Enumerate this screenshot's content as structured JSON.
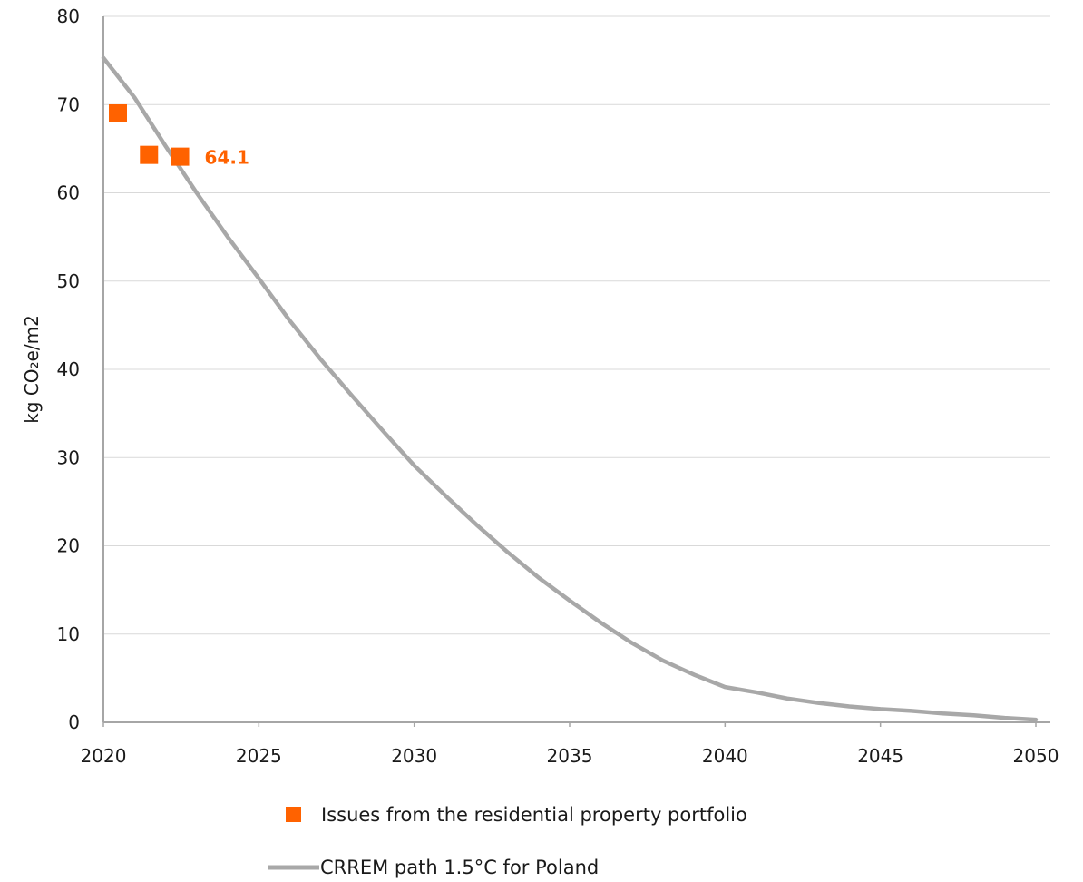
{
  "colors": {
    "issues": "#ff6200",
    "crrem": "#a8a8a8",
    "grid": "#d9d9d9",
    "axis": "#a6a6a6"
  },
  "chart_data": {
    "type": "line",
    "xlim": [
      2020,
      2050
    ],
    "ylim": [
      0,
      80
    ],
    "x_ticks": [
      "2020",
      "2025",
      "2030",
      "2035",
      "2040",
      "2045",
      "2050"
    ],
    "y_ticks": [
      "0",
      "10",
      "20",
      "30",
      "40",
      "50",
      "60",
      "70",
      "80"
    ],
    "ylabel": "kg CO₂e/m2",
    "xlabel": "",
    "grid": true,
    "legend_position": "bottom",
    "series": [
      {
        "name": "Issues from the residential property portfolio",
        "type": "scatter",
        "marker": "square",
        "color": "#ff6200",
        "x": [
          2020,
          2021,
          2022
        ],
        "y": [
          69.0,
          64.3,
          64.1
        ]
      },
      {
        "name": "CRREM path 1.5°C for Poland",
        "type": "line",
        "color": "#a8a8a8",
        "x": [
          2020,
          2021,
          2022,
          2023,
          2024,
          2025,
          2026,
          2027,
          2028,
          2029,
          2030,
          2031,
          2032,
          2033,
          2034,
          2035,
          2036,
          2037,
          2038,
          2039,
          2040,
          2041,
          2042,
          2043,
          2044,
          2045,
          2046,
          2047,
          2048,
          2049,
          2050
        ],
        "y": [
          75.3,
          70.8,
          65.3,
          60.0,
          55.0,
          50.3,
          45.5,
          41.1,
          37.0,
          33.0,
          29.1,
          25.7,
          22.4,
          19.3,
          16.4,
          13.8,
          11.3,
          9.0,
          7.0,
          5.4,
          4.0,
          3.4,
          2.7,
          2.2,
          1.8,
          1.5,
          1.3,
          1.0,
          0.8,
          0.5,
          0.3
        ]
      }
    ],
    "annotations": [
      {
        "x": 2022,
        "y": 64.1,
        "text": "64.1"
      }
    ]
  }
}
